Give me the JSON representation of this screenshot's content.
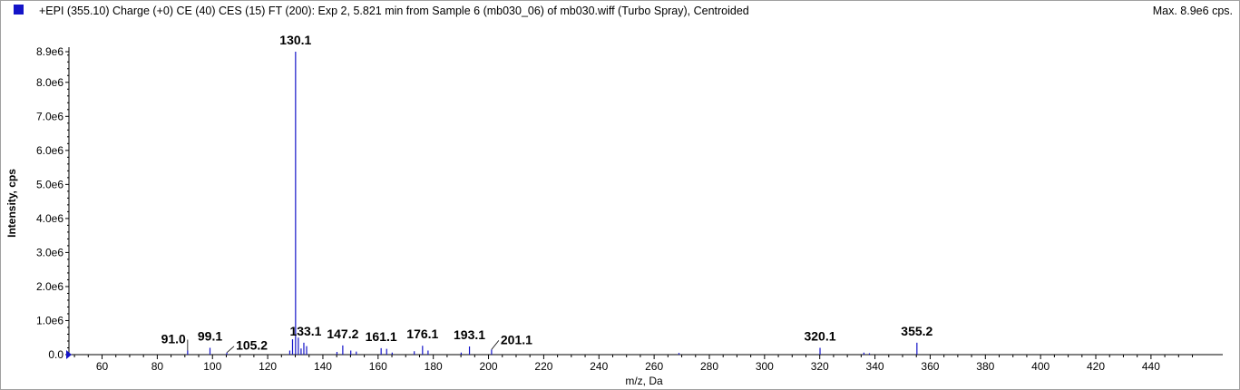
{
  "header": {
    "title": "+EPI (355.10) Charge (+0) CE (40) CES (15) FT (200): Exp 2, 5.821 min from Sample 6 (mb030_06) of mb030.wiff (Turbo Spray), Centroided",
    "max_label": "Max. 8.9e6 cps.",
    "series_color": "#1414c8"
  },
  "chart_data": {
    "type": "bar",
    "title": "+EPI (355.10) Charge (+0) CE (40) CES (15) FT (200): Exp 2, 5.821 min from Sample 6 (mb030_06) of mb030.wiff (Turbo Spray), Centroided",
    "xlabel": "m/z, Da",
    "ylabel": "Intensity, cps",
    "xlim": [
      48,
      466
    ],
    "ylim": [
      0,
      8900000
    ],
    "x_ticks": [
      60,
      80,
      100,
      120,
      140,
      160,
      180,
      200,
      220,
      240,
      260,
      280,
      300,
      320,
      340,
      360,
      380,
      400,
      420,
      440
    ],
    "y_ticks": [
      {
        "value": 0,
        "label": "0.0"
      },
      {
        "value": 1000000,
        "label": "1.0e6"
      },
      {
        "value": 2000000,
        "label": "2.0e6"
      },
      {
        "value": 3000000,
        "label": "3.0e6"
      },
      {
        "value": 4000000,
        "label": "4.0e6"
      },
      {
        "value": 5000000,
        "label": "5.0e6"
      },
      {
        "value": 6000000,
        "label": "6.0e6"
      },
      {
        "value": 7000000,
        "label": "7.0e6"
      },
      {
        "value": 8000000,
        "label": "8.0e6"
      },
      {
        "value": 8900000,
        "label": "8.9e6"
      }
    ],
    "peaks": [
      {
        "mz": 91.0,
        "intensity": 120000
      },
      {
        "mz": 99.1,
        "intensity": 200000
      },
      {
        "mz": 105.2,
        "intensity": 60000
      },
      {
        "mz": 128.0,
        "intensity": 120000
      },
      {
        "mz": 129.0,
        "intensity": 450000
      },
      {
        "mz": 130.1,
        "intensity": 8900000
      },
      {
        "mz": 131.1,
        "intensity": 500000
      },
      {
        "mz": 132.1,
        "intensity": 180000
      },
      {
        "mz": 133.1,
        "intensity": 350000
      },
      {
        "mz": 134.1,
        "intensity": 250000
      },
      {
        "mz": 145.1,
        "intensity": 80000
      },
      {
        "mz": 147.2,
        "intensity": 270000
      },
      {
        "mz": 150.1,
        "intensity": 120000
      },
      {
        "mz": 152.1,
        "intensity": 90000
      },
      {
        "mz": 161.1,
        "intensity": 190000
      },
      {
        "mz": 163.1,
        "intensity": 170000
      },
      {
        "mz": 165.1,
        "intensity": 60000
      },
      {
        "mz": 173.1,
        "intensity": 100000
      },
      {
        "mz": 176.1,
        "intensity": 260000
      },
      {
        "mz": 178.1,
        "intensity": 120000
      },
      {
        "mz": 190.1,
        "intensity": 60000
      },
      {
        "mz": 193.1,
        "intensity": 240000
      },
      {
        "mz": 201.1,
        "intensity": 150000
      },
      {
        "mz": 269.0,
        "intensity": 50000
      },
      {
        "mz": 320.1,
        "intensity": 200000
      },
      {
        "mz": 336.0,
        "intensity": 60000
      },
      {
        "mz": 338.0,
        "intensity": 40000
      },
      {
        "mz": 355.2,
        "intensity": 350000
      }
    ],
    "labels": [
      {
        "text": "91.0",
        "mz": 91.0
      },
      {
        "text": "99.1",
        "mz": 99.1
      },
      {
        "text": "105.2",
        "mz": 105.2
      },
      {
        "text": "130.1",
        "mz": 130.1
      },
      {
        "text": "133.1",
        "mz": 133.1
      },
      {
        "text": "147.2",
        "mz": 147.2
      },
      {
        "text": "161.1",
        "mz": 161.1
      },
      {
        "text": "176.1",
        "mz": 176.1
      },
      {
        "text": "193.1",
        "mz": 193.1
      },
      {
        "text": "201.1",
        "mz": 201.1
      },
      {
        "text": "320.1",
        "mz": 320.1
      },
      {
        "text": "355.2",
        "mz": 355.2
      }
    ]
  }
}
